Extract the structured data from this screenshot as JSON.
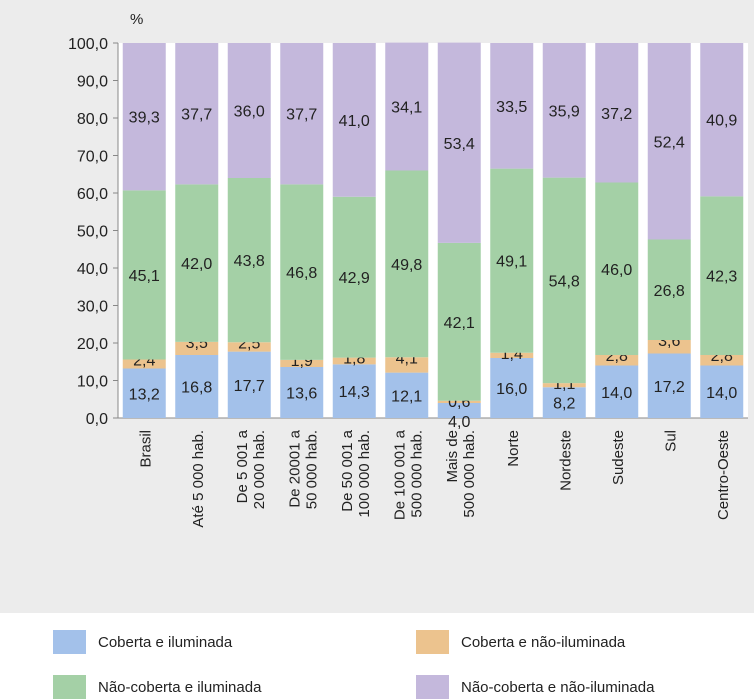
{
  "chart_data": {
    "type": "bar",
    "stacked": true,
    "title": "",
    "ylabel": "%",
    "ylim": [
      0,
      100
    ],
    "yticks": [
      "0,0",
      "10,0",
      "20,0",
      "30,0",
      "40,0",
      "50,0",
      "60,0",
      "70,0",
      "80,0",
      "90,0",
      "100,0"
    ],
    "categories": [
      {
        "lines": [
          "Brasil"
        ]
      },
      {
        "lines": [
          "Até 5 000 hab."
        ]
      },
      {
        "lines": [
          "De 5 001 a",
          "20 000 hab."
        ]
      },
      {
        "lines": [
          "De 20001 a",
          "50 000 hab."
        ]
      },
      {
        "lines": [
          "De 50 001 a",
          "100 000 hab."
        ]
      },
      {
        "lines": [
          "De 100 001 a",
          "500 000 hab."
        ]
      },
      {
        "lines": [
          "Mais de",
          "500 000 hab."
        ]
      },
      {
        "lines": [
          "Norte"
        ]
      },
      {
        "lines": [
          "Nordeste"
        ]
      },
      {
        "lines": [
          "Sudeste"
        ]
      },
      {
        "lines": [
          "Sul"
        ]
      },
      {
        "lines": [
          "Centro-Oeste"
        ]
      }
    ],
    "series": [
      {
        "name": "Coberta e iluminada",
        "color": "#a3c1ea",
        "values": [
          13.2,
          16.8,
          17.7,
          13.6,
          14.3,
          12.1,
          4.0,
          16.0,
          8.2,
          14.0,
          17.2,
          14.0
        ],
        "labels": [
          "13,2",
          "16,8",
          "17,7",
          "13,6",
          "14,3",
          "12,1",
          "4,0",
          "16,0",
          "8,2",
          "14,0",
          "17,2",
          "14,0"
        ]
      },
      {
        "name": "Coberta e não-iluminada",
        "color": "#ecc38e",
        "values": [
          2.4,
          3.5,
          2.5,
          1.9,
          1.8,
          4.1,
          0.6,
          1.4,
          1.1,
          2.8,
          3.6,
          2.8
        ],
        "labels": [
          "2,4",
          "3,5",
          "2,5",
          "1,9",
          "1,8",
          "4,1",
          "0,6",
          "1,4",
          "1,1",
          "2,8",
          "3,6",
          "2,8"
        ]
      },
      {
        "name": "Não-coberta e iluminada",
        "color": "#a4d0a6",
        "values": [
          45.1,
          42.0,
          43.8,
          46.8,
          42.9,
          49.8,
          42.1,
          49.1,
          54.8,
          46.0,
          26.8,
          42.3
        ],
        "labels": [
          "45,1",
          "42,0",
          "43,8",
          "46,8",
          "42,9",
          "49,8",
          "42,1",
          "49,1",
          "54,8",
          "46,0",
          "26,8",
          "42,3"
        ]
      },
      {
        "name": "Não-coberta e não-iluminada",
        "color": "#c4b8dc",
        "values": [
          39.3,
          37.7,
          36.0,
          37.7,
          41.0,
          34.1,
          53.4,
          33.5,
          35.9,
          37.2,
          52.4,
          40.9
        ],
        "labels": [
          "39,3",
          "37,7",
          "36,0",
          "37,7",
          "41,0",
          "34,1",
          "53,4",
          "33,5",
          "35,9",
          "37,2",
          "52,4",
          "40,9"
        ]
      }
    ],
    "legend": {
      "position": "bottom"
    },
    "grid": false
  }
}
